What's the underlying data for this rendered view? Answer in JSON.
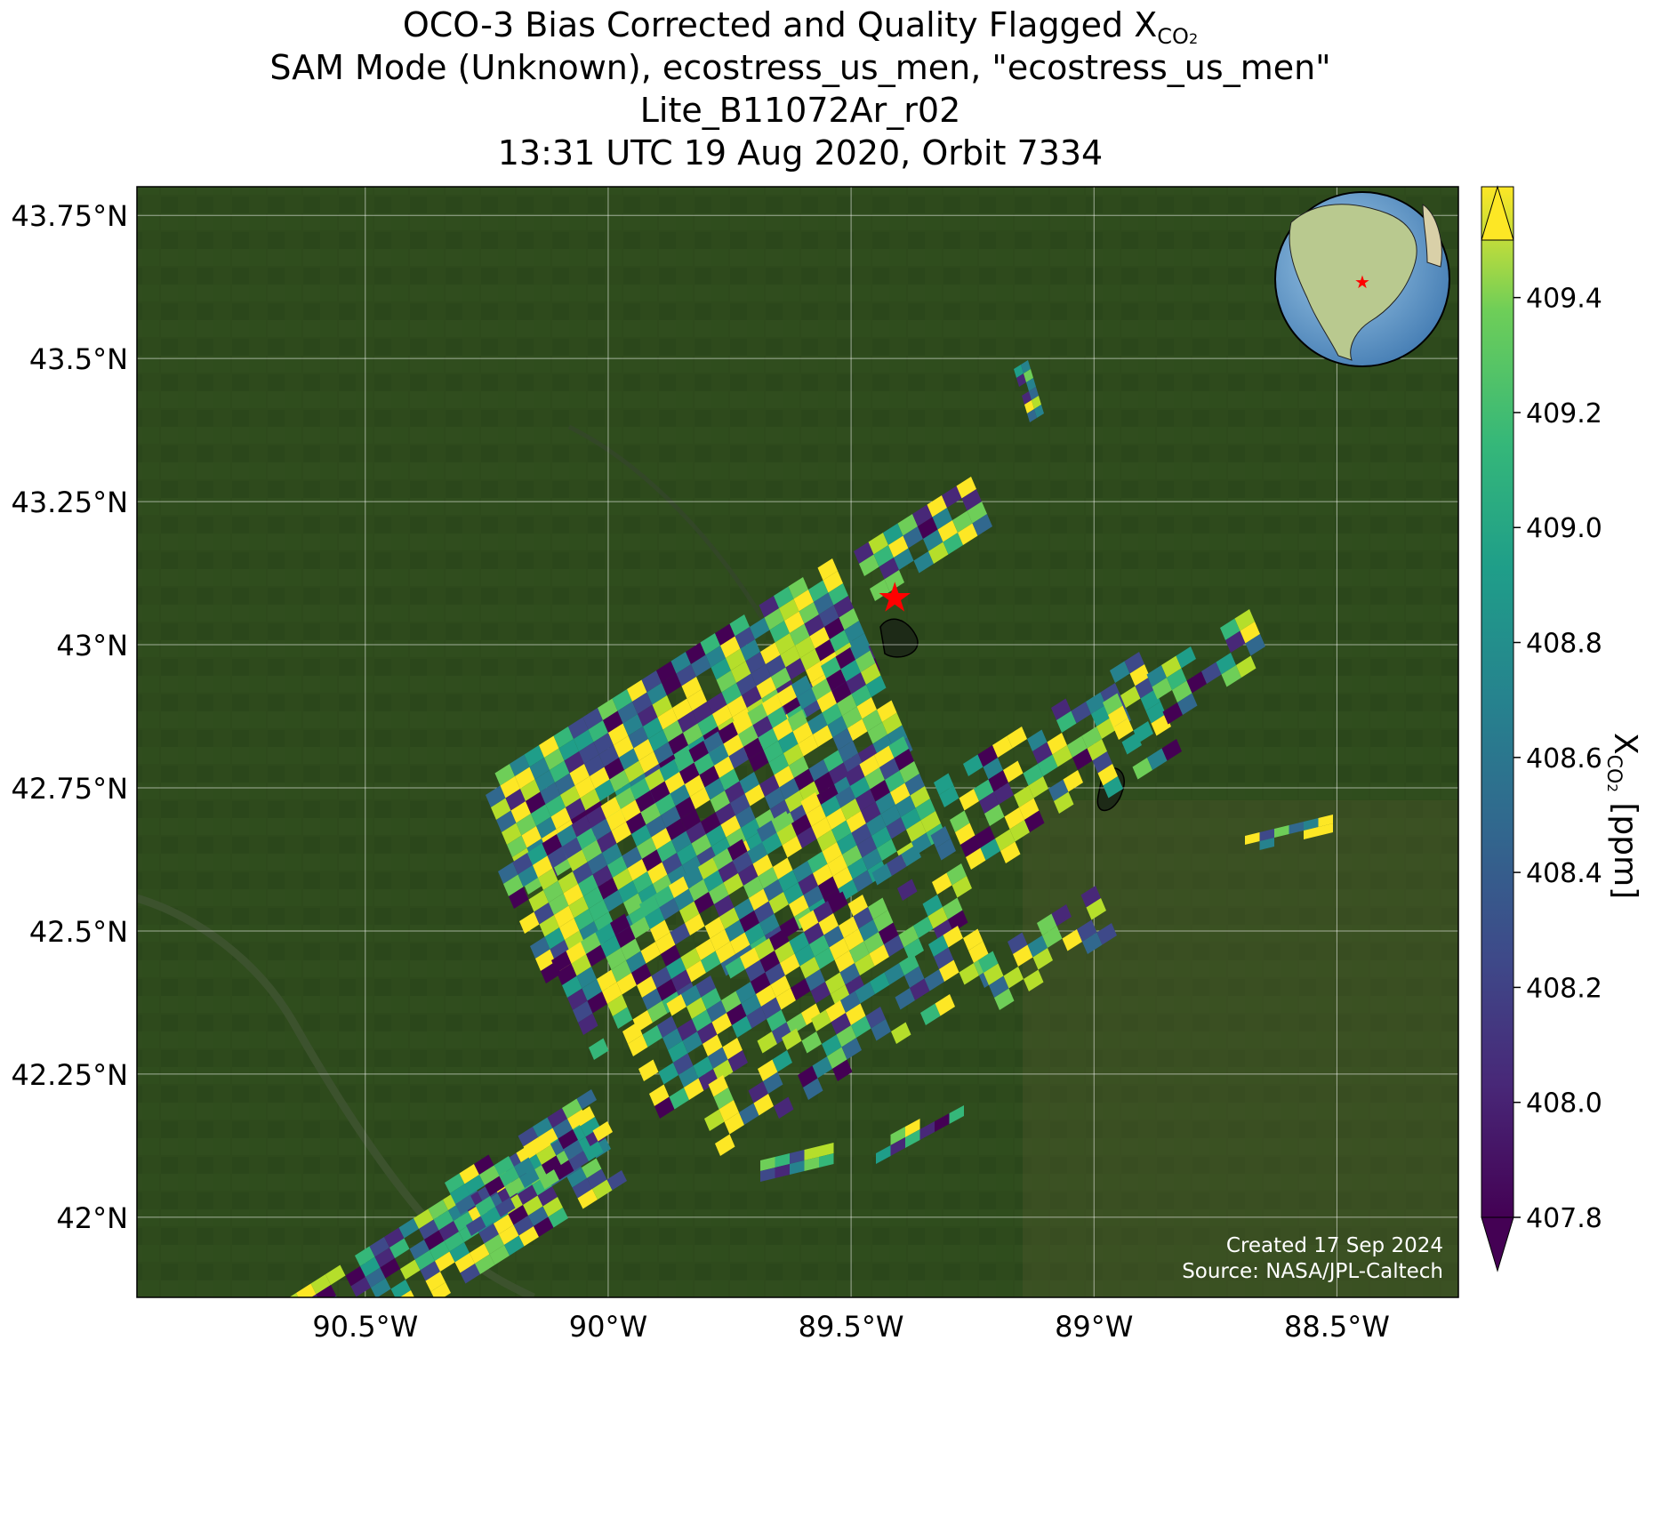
{
  "header": {
    "title_line1_main": "OCO-3 Bias Corrected and Quality Flagged X",
    "title_line1_sub": "CO",
    "title_line1_sub2": "2",
    "title_line2": "SAM Mode (Unknown), ecostress_us_men, \"ecostress_us_men\"",
    "title_line3": "Lite_B11072Ar_r02",
    "title_line4": "13:31 UTC 19 Aug 2020, Orbit 7334"
  },
  "map": {
    "lon_range": [
      -90.97,
      -88.25
    ],
    "lat_range": [
      41.86,
      43.8
    ],
    "lat_ticks": [
      {
        "value": 43.75,
        "label": "43.75°N"
      },
      {
        "value": 43.5,
        "label": "43.5°N"
      },
      {
        "value": 43.25,
        "label": "43.25°N"
      },
      {
        "value": 43.0,
        "label": "43°N"
      },
      {
        "value": 42.75,
        "label": "42.75°N"
      },
      {
        "value": 42.5,
        "label": "42.5°N"
      },
      {
        "value": 42.25,
        "label": "42.25°N"
      },
      {
        "value": 42.0,
        "label": "42°N"
      }
    ],
    "lon_ticks": [
      {
        "value": -90.5,
        "label": "90.5°W"
      },
      {
        "value": -90.0,
        "label": "90°W"
      },
      {
        "value": -89.5,
        "label": "89.5°W"
      },
      {
        "value": -89.0,
        "label": "89°W"
      },
      {
        "value": -88.5,
        "label": "88.5°W"
      }
    ],
    "grid": true,
    "background": "satellite imagery (dark green farmland)",
    "target_marker": {
      "lon": -89.41,
      "lat": 43.08,
      "symbol": "star",
      "color": "#ff0000"
    },
    "swaths": [
      {
        "lon": -89.43,
        "lat": 43.0,
        "extent": "dense sounding block over Madison area"
      },
      {
        "lon": -90.35,
        "lat": 42.25,
        "extent": "southwest strip toward Iowa border"
      }
    ],
    "credit_line1": "Created 17 Sep 2024",
    "credit_line2": "Source: NASA/JPL-Caltech",
    "inset": "globe-inset-north-america"
  },
  "colorbar": {
    "colormap": "viridis",
    "range": [
      407.8,
      409.5
    ],
    "extend": "both",
    "ticks": [
      "409.4",
      "409.2",
      "409.0",
      "408.8",
      "408.6",
      "408.4",
      "408.2",
      "408.0",
      "407.8"
    ],
    "label_main": "X",
    "label_sub": "CO",
    "label_sub2": "2",
    "label_unit": " [ppm]"
  }
}
